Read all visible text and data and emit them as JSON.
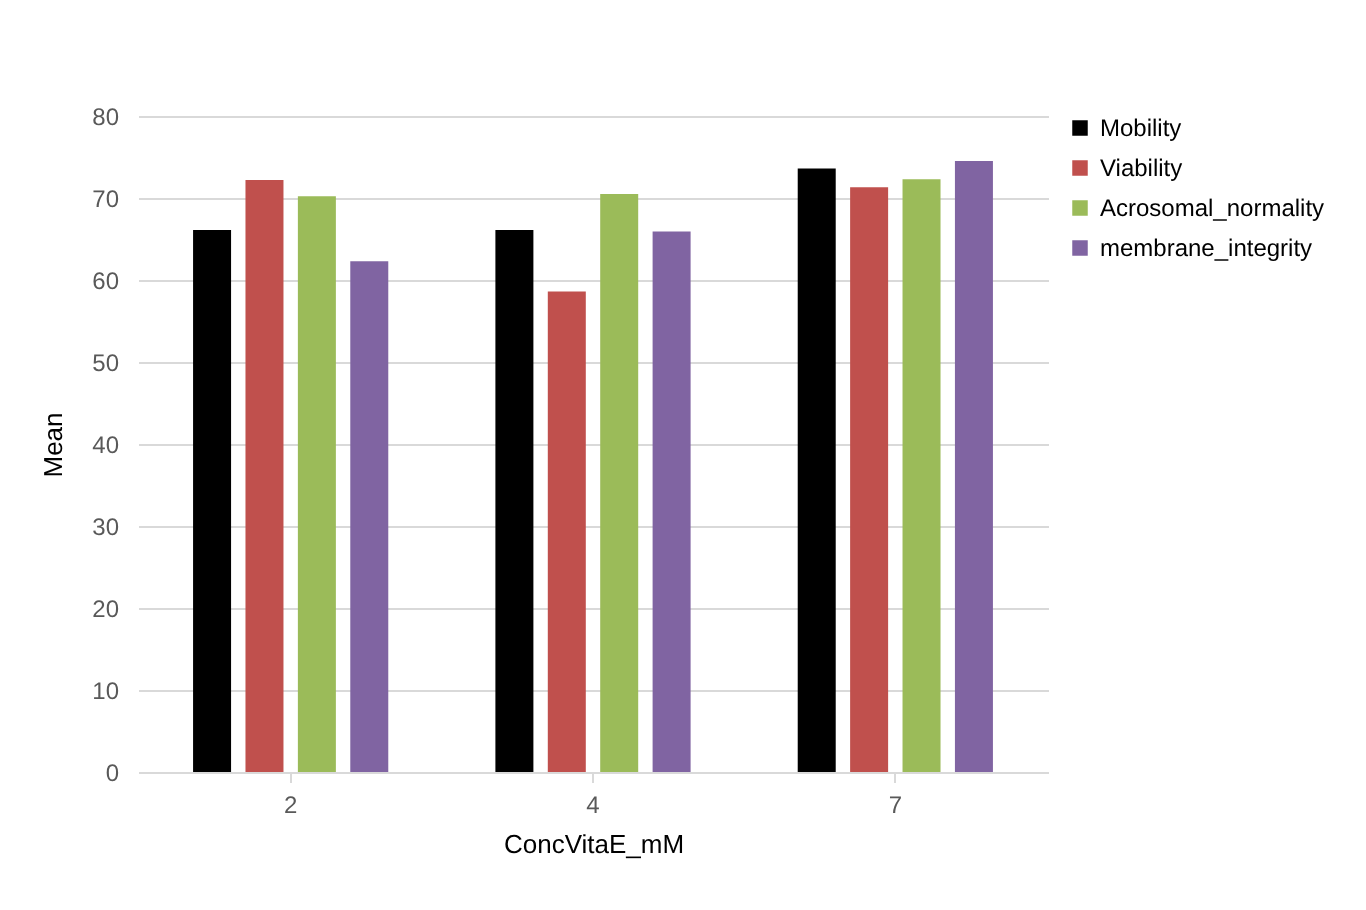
{
  "chart_data": {
    "type": "bar",
    "xlabel": "ConcVitaE_mM",
    "ylabel": "Mean",
    "categories": [
      "2",
      "4",
      "7"
    ],
    "series": [
      {
        "name": "Mobility",
        "color": "#000000",
        "values": [
          66.1,
          66.1,
          73.6
        ]
      },
      {
        "name": "Viability",
        "color": "#c0504d",
        "values": [
          72.2,
          58.6,
          71.3
        ]
      },
      {
        "name": "Acrosomal_normality",
        "color": "#9bbb59",
        "values": [
          70.2,
          70.5,
          72.3
        ]
      },
      {
        "name": "membrane_integrity",
        "color": "#8064a2",
        "values": [
          62.3,
          65.9,
          74.5
        ]
      }
    ],
    "ylim": [
      0,
      80
    ],
    "yticks": [
      0,
      10,
      20,
      30,
      40,
      50,
      60,
      70,
      80
    ],
    "grid": "y",
    "legend": "right"
  }
}
